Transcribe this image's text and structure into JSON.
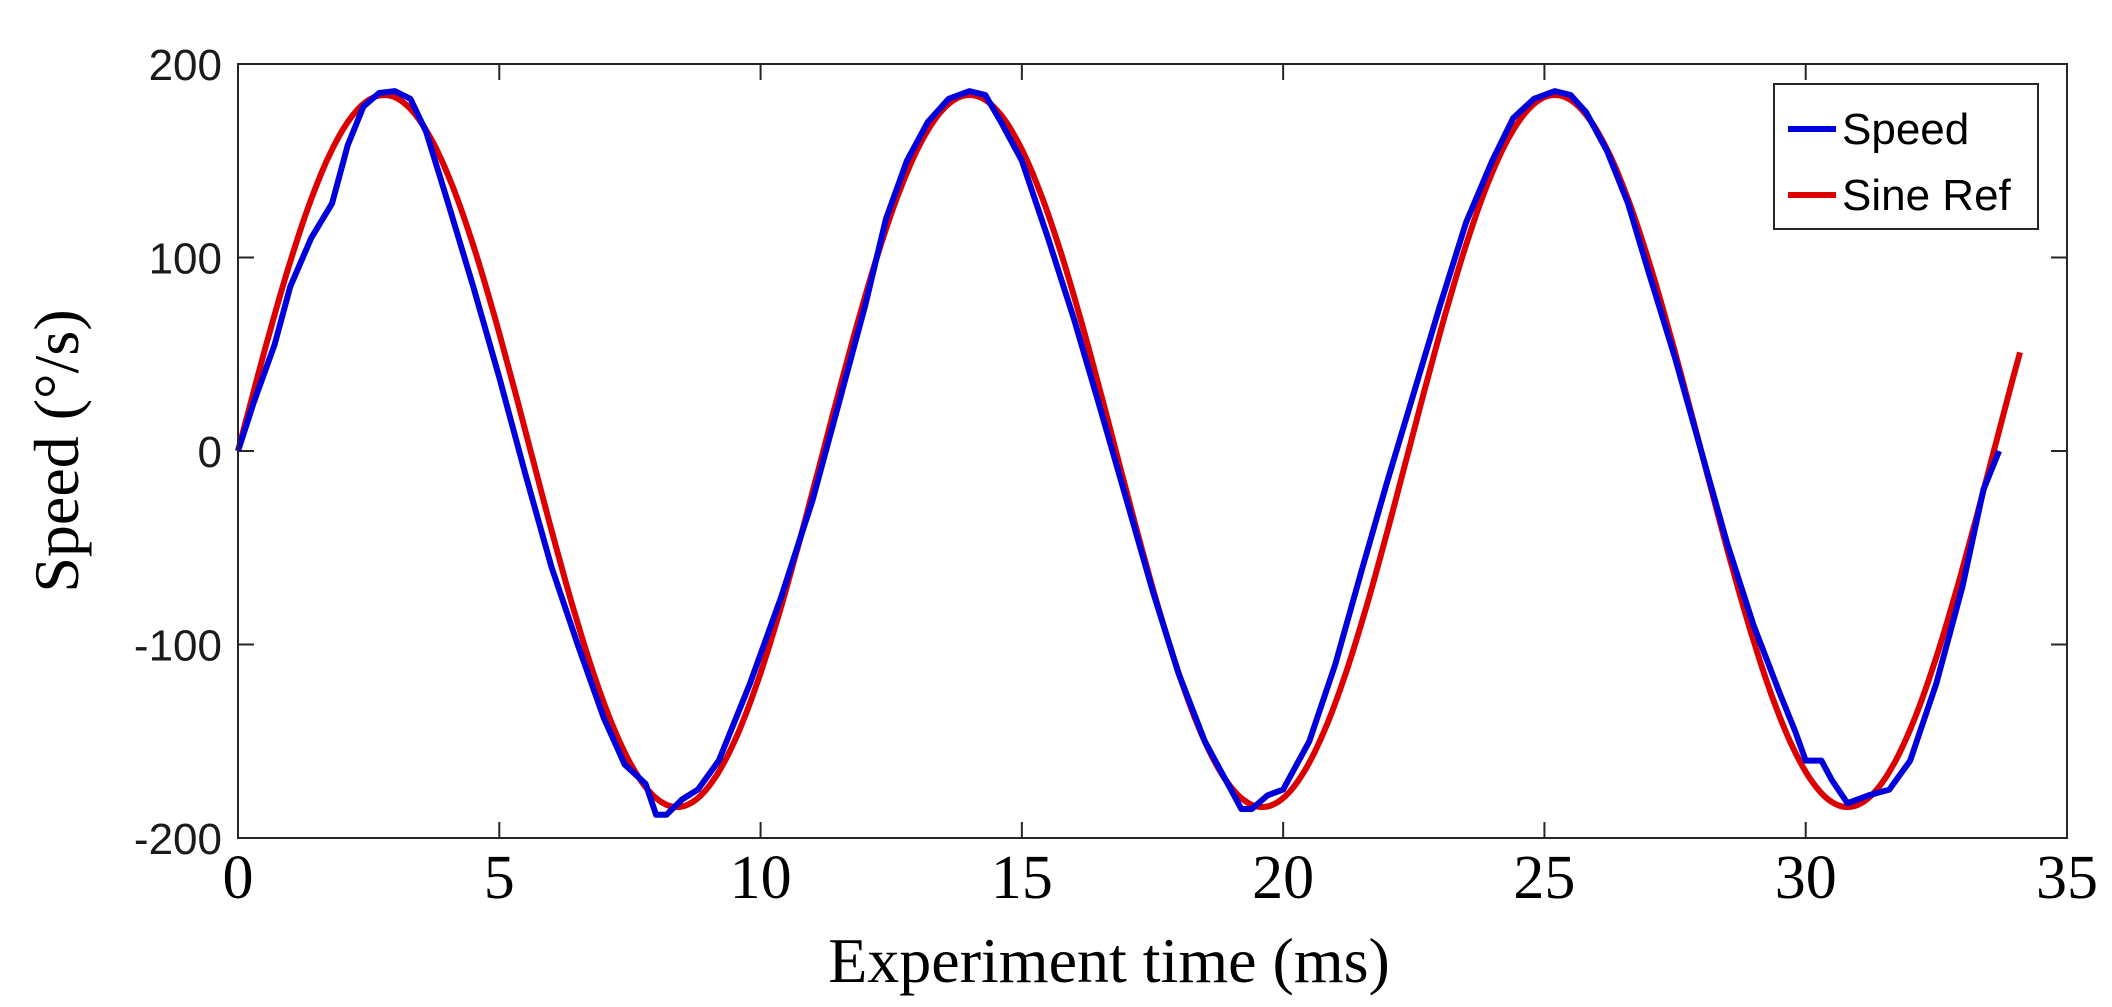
{
  "chart_data": {
    "type": "line",
    "title": "",
    "xlabel": "Experiment time (ms)",
    "ylabel": "Speed (°/s)",
    "xlim": [
      0,
      35
    ],
    "ylim": [
      -200,
      200
    ],
    "xticks": [
      0,
      5,
      10,
      15,
      20,
      25,
      30,
      35
    ],
    "yticks": [
      -200,
      -100,
      0,
      100,
      200
    ],
    "xtick_labels": [
      "0",
      "5",
      "10",
      "15",
      "20",
      "25",
      "30",
      "35"
    ],
    "ytick_labels": [
      "-200",
      "-100",
      "0",
      "100",
      "200"
    ],
    "grid": false,
    "legend_position": "top-right",
    "series": [
      {
        "name": "Speed",
        "color": "#0000dd",
        "x": [
          0,
          0.3,
          0.7,
          1.0,
          1.4,
          1.8,
          2.1,
          2.4,
          2.7,
          3.0,
          3.3,
          3.6,
          4.0,
          4.5,
          5.0,
          5.5,
          6.0,
          6.5,
          7.0,
          7.4,
          7.8,
          8.0,
          8.2,
          8.5,
          8.8,
          9.2,
          9.8,
          10.4,
          11.0,
          11.5,
          12.0,
          12.4,
          12.8,
          13.2,
          13.6,
          14.0,
          14.3,
          14.6,
          15.0,
          15.5,
          16.0,
          16.5,
          17.0,
          17.5,
          18.0,
          18.5,
          18.8,
          19.0,
          19.2,
          19.4,
          19.7,
          20.0,
          20.5,
          21.0,
          21.5,
          22.0,
          22.5,
          23.0,
          23.5,
          24.0,
          24.4,
          24.8,
          25.2,
          25.5,
          25.8,
          26.2,
          26.6,
          27.0,
          27.5,
          28.0,
          28.5,
          29.0,
          29.5,
          29.8,
          30.0,
          30.3,
          30.5,
          30.8,
          31.2,
          31.6,
          32.0,
          32.5,
          33.0,
          33.4,
          33.7
        ],
        "values": [
          0,
          25,
          55,
          85,
          110,
          128,
          158,
          178,
          185,
          186,
          182,
          165,
          130,
          85,
          38,
          -12,
          -60,
          -100,
          -138,
          -162,
          -172,
          -188,
          -188,
          -180,
          -175,
          -160,
          -120,
          -75,
          -25,
          25,
          75,
          120,
          150,
          170,
          182,
          186,
          184,
          170,
          150,
          110,
          68,
          22,
          -25,
          -72,
          -115,
          -150,
          -165,
          -175,
          -185,
          -185,
          -178,
          -175,
          -150,
          -110,
          -62,
          -15,
          30,
          75,
          118,
          150,
          172,
          182,
          186,
          184,
          175,
          155,
          128,
          92,
          48,
          0,
          -48,
          -90,
          -125,
          -145,
          -160,
          -160,
          -170,
          -182,
          -178,
          -175,
          -160,
          -120,
          -70,
          -20,
          0
        ]
      },
      {
        "name": "Sine Ref",
        "color": "#dd0000",
        "period": 11.2,
        "amplitude": 184,
        "x_range": [
          0,
          34.1
        ]
      }
    ]
  }
}
